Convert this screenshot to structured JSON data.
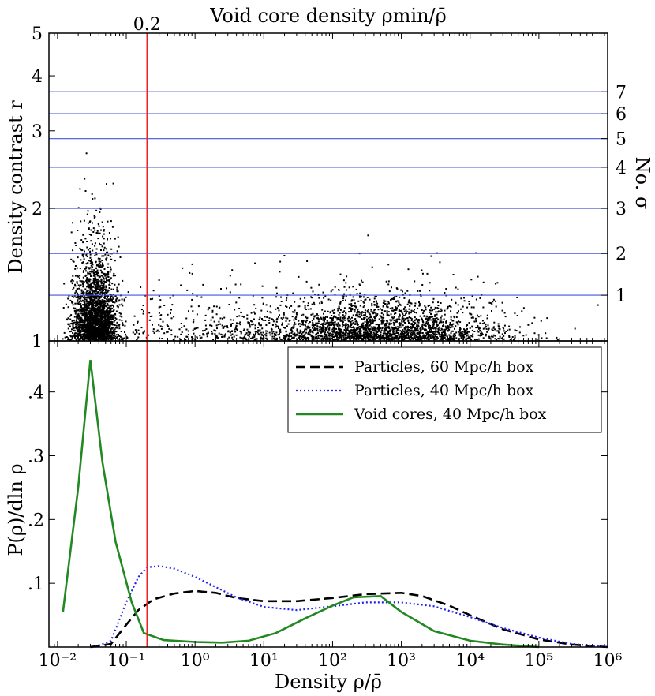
{
  "figure_title": "Void core density ρmin/ρ̄",
  "chart_data": [
    {
      "id": "top",
      "type": "scatter",
      "title": "Void core density ρmin/ρ̄",
      "ylabel": "Density contrast r",
      "y2label": "No. σ",
      "xscale": "log",
      "yscale": "log",
      "xlim": [
        0.0075,
        1000000
      ],
      "ylim": [
        1,
        5
      ],
      "y_ticks": [
        1,
        2,
        3,
        4,
        5
      ],
      "y_tick_labels": [
        "1",
        "2",
        "3",
        "4",
        "5"
      ],
      "sigma_levels": [
        {
          "label": "1",
          "r": 1.27
        },
        {
          "label": "2",
          "r": 1.58
        },
        {
          "label": "3",
          "r": 2.0
        },
        {
          "label": "4",
          "r": 2.48
        },
        {
          "label": "5",
          "r": 2.88
        },
        {
          "label": "6",
          "r": 3.28
        },
        {
          "label": "7",
          "r": 3.68
        }
      ],
      "threshold": {
        "x": 0.2,
        "label": "0.2",
        "color": "#ee2222"
      },
      "sigma_line_color": "#4455dd",
      "point_color": "#000000",
      "point_clusters": [
        {
          "name": "low-density-voids",
          "log10x_mean": -1.45,
          "log10x_sd": 0.16,
          "count": 2600,
          "r_base": 1.0,
          "r_tail": 0.35
        },
        {
          "name": "transition-sparse",
          "log10x_min": -0.9,
          "log10x_max": 1.0,
          "count": 260,
          "r_base": 1.0,
          "r_tail": 0.2
        },
        {
          "name": "high-density-cores",
          "log10x_mean": 2.6,
          "log10x_sd": 0.9,
          "count": 2600,
          "r_base": 1.0,
          "r_tail": 0.17
        }
      ]
    },
    {
      "id": "bottom",
      "type": "line",
      "xlabel": "Density ρ/ρ̄",
      "ylabel": "P(ρ)/dln ρ",
      "xscale": "log",
      "xlim": [
        0.0075,
        1000000
      ],
      "ylim": [
        0,
        0.48
      ],
      "x_ticks": [
        0.01,
        0.1,
        1,
        10,
        100,
        1000,
        10000,
        100000,
        1000000
      ],
      "x_tick_labels": [
        "10⁻²",
        "10⁻¹",
        "10⁰",
        "10¹",
        "10²",
        "10³",
        "10⁴",
        "10⁵",
        "10⁶"
      ],
      "y_ticks": [
        0.1,
        0.2,
        0.3,
        0.4
      ],
      "y_tick_labels": [
        ".1",
        ".2",
        ".3",
        ".4"
      ],
      "legend_position": "top-right",
      "series": [
        {
          "name": "Particles, 60 Mpc/h box",
          "color": "#000000",
          "dash": "dashed",
          "points": [
            [
              0.03,
              0
            ],
            [
              0.06,
              0.005
            ],
            [
              0.1,
              0.035
            ],
            [
              0.15,
              0.058
            ],
            [
              0.25,
              0.075
            ],
            [
              0.5,
              0.084
            ],
            [
              1,
              0.088
            ],
            [
              2,
              0.085
            ],
            [
              4,
              0.077
            ],
            [
              10,
              0.072
            ],
            [
              30,
              0.072
            ],
            [
              100,
              0.077
            ],
            [
              300,
              0.083
            ],
            [
              1000,
              0.085
            ],
            [
              2000,
              0.08
            ],
            [
              5000,
              0.065
            ],
            [
              10000,
              0.05
            ],
            [
              30000,
              0.028
            ],
            [
              100000,
              0.012
            ],
            [
              300000,
              0.004
            ],
            [
              1000000,
              0
            ]
          ]
        },
        {
          "name": "Particles, 40 Mpc/h box",
          "color": "#2222ee",
          "dash": "dotted",
          "points": [
            [
              0.035,
              0
            ],
            [
              0.06,
              0.01
            ],
            [
              0.1,
              0.07
            ],
            [
              0.15,
              0.11
            ],
            [
              0.2,
              0.125
            ],
            [
              0.3,
              0.127
            ],
            [
              0.5,
              0.123
            ],
            [
              1,
              0.11
            ],
            [
              2,
              0.094
            ],
            [
              4,
              0.078
            ],
            [
              10,
              0.063
            ],
            [
              30,
              0.058
            ],
            [
              100,
              0.064
            ],
            [
              300,
              0.07
            ],
            [
              1000,
              0.07
            ],
            [
              3000,
              0.064
            ],
            [
              10000,
              0.047
            ],
            [
              30000,
              0.03
            ],
            [
              100000,
              0.015
            ],
            [
              300000,
              0.005
            ],
            [
              1000000,
              0
            ]
          ]
        },
        {
          "name": "Void cores, 40 Mpc/h box",
          "color": "#228822",
          "dash": "solid",
          "points": [
            [
              0.012,
              0.055
            ],
            [
              0.02,
              0.25
            ],
            [
              0.03,
              0.45
            ],
            [
              0.045,
              0.29
            ],
            [
              0.07,
              0.165
            ],
            [
              0.12,
              0.07
            ],
            [
              0.18,
              0.022
            ],
            [
              0.35,
              0.011
            ],
            [
              1,
              0.008
            ],
            [
              2.5,
              0.007
            ],
            [
              6,
              0.01
            ],
            [
              15,
              0.022
            ],
            [
              40,
              0.045
            ],
            [
              100,
              0.065
            ],
            [
              200,
              0.078
            ],
            [
              500,
              0.08
            ],
            [
              1000,
              0.055
            ],
            [
              3000,
              0.025
            ],
            [
              10000,
              0.01
            ],
            [
              30000,
              0.004
            ],
            [
              100000,
              0
            ]
          ]
        }
      ]
    }
  ]
}
